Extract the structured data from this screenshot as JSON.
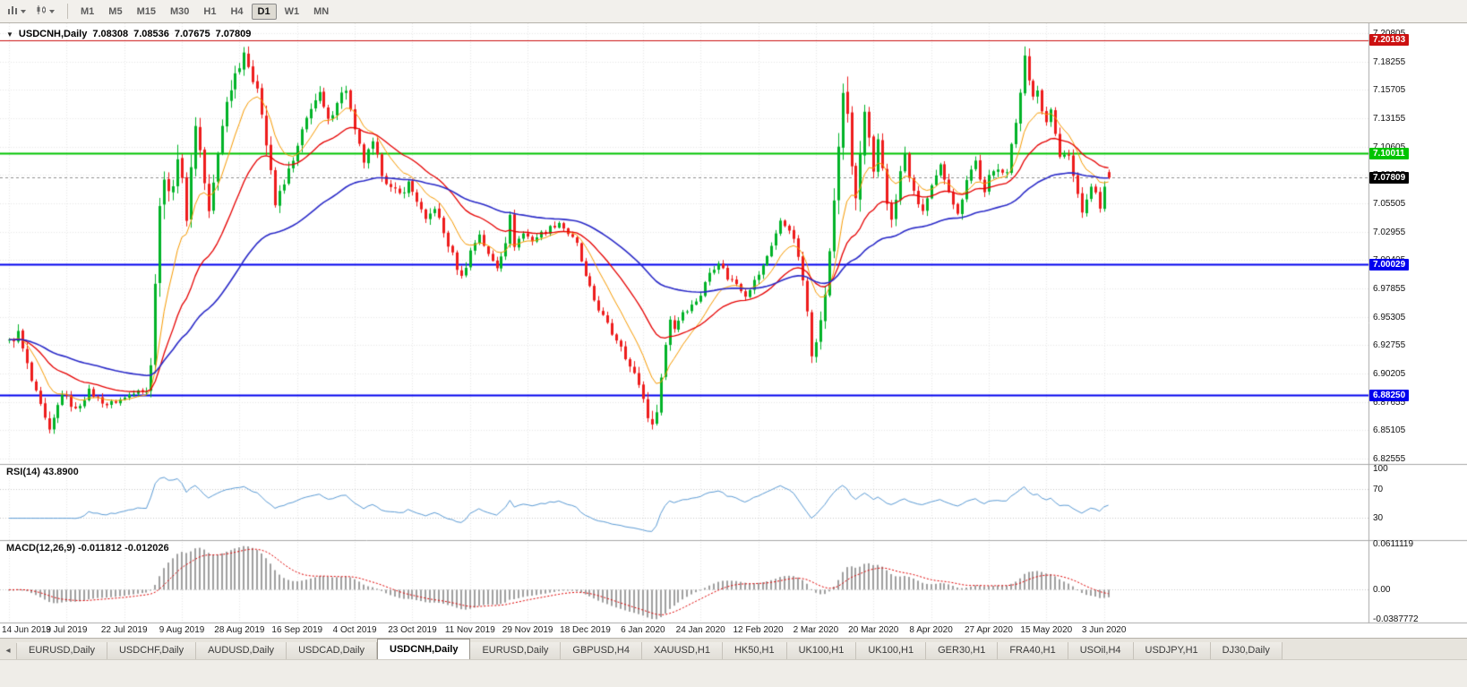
{
  "toolbar": {
    "periods": [
      {
        "label": "M1",
        "active": false
      },
      {
        "label": "M5",
        "active": false
      },
      {
        "label": "M15",
        "active": false
      },
      {
        "label": "M30",
        "active": false
      },
      {
        "label": "H1",
        "active": false
      },
      {
        "label": "H4",
        "active": false
      },
      {
        "label": "D1",
        "active": true
      },
      {
        "label": "W1",
        "active": false
      },
      {
        "label": "MN",
        "active": false
      }
    ]
  },
  "chart": {
    "header": {
      "collapse": "▼",
      "symbol": "USDCNH,Daily",
      "open": "7.08308",
      "high": "7.08536",
      "low": "7.07675",
      "close": "7.07809"
    },
    "candle_colors": {
      "up": "#00b327",
      "down": "#ee1c1c"
    },
    "ma_lines": [
      {
        "name": "ma-fast",
        "period": 10,
        "color": "#f79a00"
      },
      {
        "name": "ma-mid",
        "period": 25,
        "color": "#e60000"
      },
      {
        "name": "ma-slow",
        "period": 60,
        "color": "#2a2ac8"
      }
    ],
    "hlines": [
      {
        "value": 7.20193,
        "tag": "7.20193",
        "color": "#cc1111",
        "width": 1
      },
      {
        "value": 7.10011,
        "tag": "7.10011",
        "color": "#00c400",
        "width": 2
      },
      {
        "value": 7.00029,
        "tag": "7.00029",
        "color": "#0000ee",
        "width": 2
      },
      {
        "value": 6.8825,
        "tag": "6.88250",
        "color": "#0000ee",
        "width": 2
      }
    ],
    "bid": {
      "value": 7.07809,
      "tag": "7.07809",
      "color": "#000000"
    }
  },
  "chart_data": {
    "type": "candlestick",
    "symbol": "USDCNH",
    "timeframe": "Daily",
    "num_candles": 249,
    "candles_per_x_label": 13,
    "x_labels": [
      "14 Jun 2019",
      "3 Jul 2019",
      "22 Jul 2019",
      "9 Aug 2019",
      "28 Aug 2019",
      "16 Sep 2019",
      "4 Oct 2019",
      "23 Oct 2019",
      "11 Nov 2019",
      "29 Nov 2019",
      "18 Dec 2019",
      "6 Jan 2020",
      "24 Jan 2020",
      "12 Feb 2020",
      "2 Mar 2020",
      "20 Mar 2020",
      "8 Apr 2020",
      "27 Apr 2020",
      "15 May 2020",
      "3 Jun 2020"
    ],
    "y_axis": {
      "max": 7.20805,
      "min": 6.82555,
      "step": 0.0255,
      "labels": [
        "7.20805",
        "7.18255",
        "7.15705",
        "7.13155",
        "7.10605",
        "7.08055",
        "7.05505",
        "7.02955",
        "7.00405",
        "6.97855",
        "6.95305",
        "6.92755",
        "6.90205",
        "6.87655",
        "6.85105",
        "6.82555"
      ]
    },
    "ohlc_current": {
      "open": 7.08308,
      "high": 7.08536,
      "low": 7.07675,
      "close": 7.07809
    },
    "key_levels": [
      7.20193,
      7.10011,
      7.00029,
      6.8825
    ],
    "path_anchors": [
      [
        0,
        6.93,
        0.014
      ],
      [
        2,
        6.938,
        0.014
      ],
      [
        5,
        6.895,
        0.013
      ],
      [
        9,
        6.848,
        0.015
      ],
      [
        12,
        6.885,
        0.012
      ],
      [
        15,
        6.869,
        0.01
      ],
      [
        18,
        6.886,
        0.01
      ],
      [
        22,
        6.874,
        0.009
      ],
      [
        26,
        6.88,
        0.009
      ],
      [
        29,
        6.889,
        0.009
      ],
      [
        31,
        6.885,
        0.01
      ],
      [
        32,
        6.915,
        0.022
      ],
      [
        33,
        6.985,
        0.03
      ],
      [
        34,
        7.048,
        0.034
      ],
      [
        35,
        7.085,
        0.034
      ],
      [
        36,
        7.058,
        0.03
      ],
      [
        38,
        7.098,
        0.032
      ],
      [
        40,
        7.045,
        0.028
      ],
      [
        42,
        7.128,
        0.03
      ],
      [
        43,
        7.102,
        0.026
      ],
      [
        45,
        7.045,
        0.024
      ],
      [
        46,
        7.072,
        0.022
      ],
      [
        48,
        7.128,
        0.022
      ],
      [
        50,
        7.162,
        0.022
      ],
      [
        53,
        7.193,
        0.024
      ],
      [
        54,
        7.172,
        0.022
      ],
      [
        56,
        7.163,
        0.02
      ],
      [
        58,
        7.108,
        0.022
      ],
      [
        60,
        7.053,
        0.02
      ],
      [
        62,
        7.075,
        0.016
      ],
      [
        64,
        7.092,
        0.016
      ],
      [
        66,
        7.118,
        0.016
      ],
      [
        68,
        7.143,
        0.016
      ],
      [
        70,
        7.152,
        0.014
      ],
      [
        72,
        7.128,
        0.014
      ],
      [
        74,
        7.148,
        0.014
      ],
      [
        76,
        7.158,
        0.014
      ],
      [
        78,
        7.118,
        0.016
      ],
      [
        80,
        7.093,
        0.014
      ],
      [
        82,
        7.108,
        0.013
      ],
      [
        84,
        7.083,
        0.013
      ],
      [
        86,
        7.068,
        0.012
      ],
      [
        88,
        7.063,
        0.012
      ],
      [
        90,
        7.073,
        0.012
      ],
      [
        92,
        7.058,
        0.012
      ],
      [
        94,
        7.038,
        0.012
      ],
      [
        96,
        7.052,
        0.012
      ],
      [
        98,
        7.028,
        0.012
      ],
      [
        100,
        7.008,
        0.013
      ],
      [
        102,
        6.988,
        0.014
      ],
      [
        104,
        7.012,
        0.012
      ],
      [
        106,
        7.028,
        0.011
      ],
      [
        108,
        7.008,
        0.011
      ],
      [
        110,
        6.998,
        0.011
      ],
      [
        112,
        7.022,
        0.013
      ],
      [
        113,
        7.042,
        0.013
      ],
      [
        114,
        7.018,
        0.011
      ],
      [
        116,
        7.028,
        0.01
      ],
      [
        118,
        7.022,
        0.009
      ],
      [
        120,
        7.028,
        0.009
      ],
      [
        122,
        7.033,
        0.009
      ],
      [
        124,
        7.038,
        0.009
      ],
      [
        126,
        7.028,
        0.009
      ],
      [
        128,
        7.018,
        0.009
      ],
      [
        130,
        6.988,
        0.01
      ],
      [
        132,
        6.968,
        0.01
      ],
      [
        134,
        6.953,
        0.01
      ],
      [
        136,
        6.938,
        0.01
      ],
      [
        138,
        6.928,
        0.011
      ],
      [
        140,
        6.908,
        0.012
      ],
      [
        142,
        6.893,
        0.013
      ],
      [
        143,
        6.879,
        0.015
      ],
      [
        145,
        6.852,
        0.02
      ],
      [
        146,
        6.872,
        0.018
      ],
      [
        147,
        6.898,
        0.016
      ],
      [
        148,
        6.928,
        0.016
      ],
      [
        149,
        6.952,
        0.014
      ],
      [
        150,
        6.943,
        0.012
      ],
      [
        152,
        6.958,
        0.011
      ],
      [
        154,
        6.963,
        0.01
      ],
      [
        156,
        6.973,
        0.01
      ],
      [
        158,
        6.993,
        0.01
      ],
      [
        160,
        7.003,
        0.01
      ],
      [
        162,
        6.988,
        0.01
      ],
      [
        164,
        6.983,
        0.009
      ],
      [
        166,
        6.973,
        0.009
      ],
      [
        168,
        6.985,
        0.009
      ],
      [
        170,
        6.998,
        0.01
      ],
      [
        172,
        7.018,
        0.01
      ],
      [
        174,
        7.038,
        0.011
      ],
      [
        176,
        7.033,
        0.011
      ],
      [
        178,
        7.008,
        0.012
      ],
      [
        180,
        6.958,
        0.016
      ],
      [
        181,
        6.922,
        0.018
      ],
      [
        182,
        6.935,
        0.018
      ],
      [
        183,
        6.948,
        0.018
      ],
      [
        184,
        6.975,
        0.022
      ],
      [
        185,
        7.008,
        0.026
      ],
      [
        186,
        7.058,
        0.032
      ],
      [
        187,
        7.108,
        0.036
      ],
      [
        188,
        7.158,
        0.038
      ],
      [
        189,
        7.128,
        0.034
      ],
      [
        190,
        7.088,
        0.032
      ],
      [
        191,
        7.058,
        0.03
      ],
      [
        192,
        7.098,
        0.03
      ],
      [
        193,
        7.133,
        0.028
      ],
      [
        194,
        7.108,
        0.026
      ],
      [
        195,
        7.078,
        0.026
      ],
      [
        196,
        7.112,
        0.024
      ],
      [
        197,
        7.088,
        0.022
      ],
      [
        198,
        7.058,
        0.02
      ],
      [
        199,
        7.038,
        0.018
      ],
      [
        200,
        7.058,
        0.016
      ],
      [
        201,
        7.083,
        0.016
      ],
      [
        202,
        7.098,
        0.015
      ],
      [
        204,
        7.063,
        0.014
      ],
      [
        206,
        7.048,
        0.013
      ],
      [
        208,
        7.068,
        0.013
      ],
      [
        210,
        7.088,
        0.012
      ],
      [
        212,
        7.068,
        0.012
      ],
      [
        214,
        7.044,
        0.012
      ],
      [
        216,
        7.078,
        0.012
      ],
      [
        218,
        7.093,
        0.012
      ],
      [
        220,
        7.063,
        0.012
      ],
      [
        221,
        7.078,
        0.012
      ],
      [
        223,
        7.088,
        0.012
      ],
      [
        225,
        7.083,
        0.012
      ],
      [
        227,
        7.128,
        0.016
      ],
      [
        228,
        7.158,
        0.018
      ],
      [
        229,
        7.192,
        0.02
      ],
      [
        230,
        7.163,
        0.018
      ],
      [
        231,
        7.148,
        0.016
      ],
      [
        232,
        7.158,
        0.016
      ],
      [
        233,
        7.138,
        0.015
      ],
      [
        234,
        7.128,
        0.014
      ],
      [
        235,
        7.143,
        0.014
      ],
      [
        236,
        7.118,
        0.014
      ],
      [
        237,
        7.098,
        0.013
      ],
      [
        239,
        7.098,
        0.012
      ],
      [
        240,
        7.078,
        0.013
      ],
      [
        241,
        7.063,
        0.013
      ],
      [
        242,
        7.046,
        0.014
      ],
      [
        243,
        7.058,
        0.013
      ],
      [
        244,
        7.072,
        0.012
      ],
      [
        245,
        7.062,
        0.012
      ],
      [
        246,
        7.052,
        0.012
      ],
      [
        247,
        7.068,
        0.012
      ],
      [
        248,
        7.078,
        0.01
      ]
    ],
    "indicators": [
      {
        "name": "RSI",
        "period": 14,
        "current": 43.89,
        "levels": [
          70,
          30
        ],
        "range": [
          0,
          100
        ]
      },
      {
        "name": "MACD",
        "fast": 12,
        "slow": 26,
        "signal": 9,
        "current_macd": -0.011812,
        "current_signal": -0.012026,
        "ylim": [
          -0.0387772,
          0.0611119
        ]
      }
    ]
  },
  "rsi_panel": {
    "label": "RSI(14) 43.8900",
    "line_color": "#5b9bd5",
    "axis": [
      {
        "label": "100",
        "value": 100
      },
      {
        "label": "70",
        "value": 70
      },
      {
        "label": "30",
        "value": 30
      }
    ]
  },
  "macd_panel": {
    "label": "MACD(12,26,9) -0.011812 -0.012026",
    "hist_color": "#9f9f9f",
    "signal_color": "#e00000",
    "axis": [
      {
        "label": "0.0611119",
        "value": 0.0611119
      },
      {
        "label": "0.00",
        "value": 0
      },
      {
        "label": "-0.0387772",
        "value": -0.0387772
      }
    ]
  },
  "tabbar": {
    "tabs": [
      {
        "label": "EURUSD,Daily",
        "active": false
      },
      {
        "label": "USDCHF,Daily",
        "active": false
      },
      {
        "label": "AUDUSD,Daily",
        "active": false
      },
      {
        "label": "USDCAD,Daily",
        "active": false
      },
      {
        "label": "USDCNH,Daily",
        "active": true
      },
      {
        "label": "EURUSD,Daily",
        "active": false
      },
      {
        "label": "GBPUSD,H4",
        "active": false
      },
      {
        "label": "XAUUSD,H1",
        "active": false
      },
      {
        "label": "HK50,H1",
        "active": false
      },
      {
        "label": "UK100,H1",
        "active": false
      },
      {
        "label": "UK100,H1",
        "active": false
      },
      {
        "label": "GER30,H1",
        "active": false
      },
      {
        "label": "FRA40,H1",
        "active": false
      },
      {
        "label": "USOil,H4",
        "active": false
      },
      {
        "label": "USDJPY,H1",
        "active": false
      },
      {
        "label": "DJ30,Daily",
        "active": false
      }
    ]
  }
}
